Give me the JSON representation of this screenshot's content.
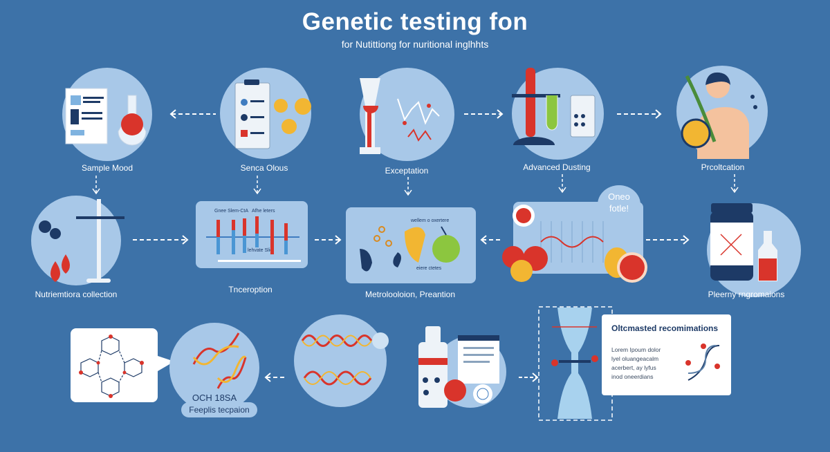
{
  "header": {
    "title": "Genetic testing fon",
    "subtitle": "for Nutittiong for nuritional inglhhts"
  },
  "row1": [
    {
      "label": "Sample Mood",
      "icon": "document-flask-icon"
    },
    {
      "label": "Senca Olous",
      "icon": "clipboard-icon"
    },
    {
      "label": "Exceptation",
      "icon": "hourglass-graph-icon"
    },
    {
      "label": "Advanced Dusting",
      "icon": "lab-equipment-icon"
    },
    {
      "label": "Prcoltcation",
      "icon": "person-icon"
    }
  ],
  "row2": {
    "collection": {
      "label": "Nutriemtiora collection"
    },
    "chart_panel": {
      "label": "Tnceroption",
      "legend_left": "Gnee Slem-CtA",
      "legend_right": "Afhe leters",
      "caption": "lehvate Slie"
    },
    "food_panel": {
      "label": "Metrolooloion, Preantion",
      "top_text": "wellem o oxertere",
      "bottom_text": "eiere ctetes"
    },
    "fruit_panel": {
      "bubble": "Oneo fotle!"
    },
    "supplement": {
      "label": "Pleerny rngromaions"
    }
  },
  "row3": {
    "dna_circle": {
      "code": "OCH 18SA",
      "pill": "Feeplis tecpaion"
    },
    "result_card": {
      "title": "Oltcmasted recomimations",
      "body": [
        "Lorem Ipoum dolor",
        "lyel oluangeacalm",
        "acerbert, ay lyfus",
        "inod oneerdians"
      ]
    }
  },
  "colors": {
    "background": "#3d72a8",
    "circle": "#a8c8e8",
    "accent_red": "#d9342b",
    "navy": "#1d3a66",
    "yellow": "#f2b632",
    "green": "#8cc63f"
  }
}
